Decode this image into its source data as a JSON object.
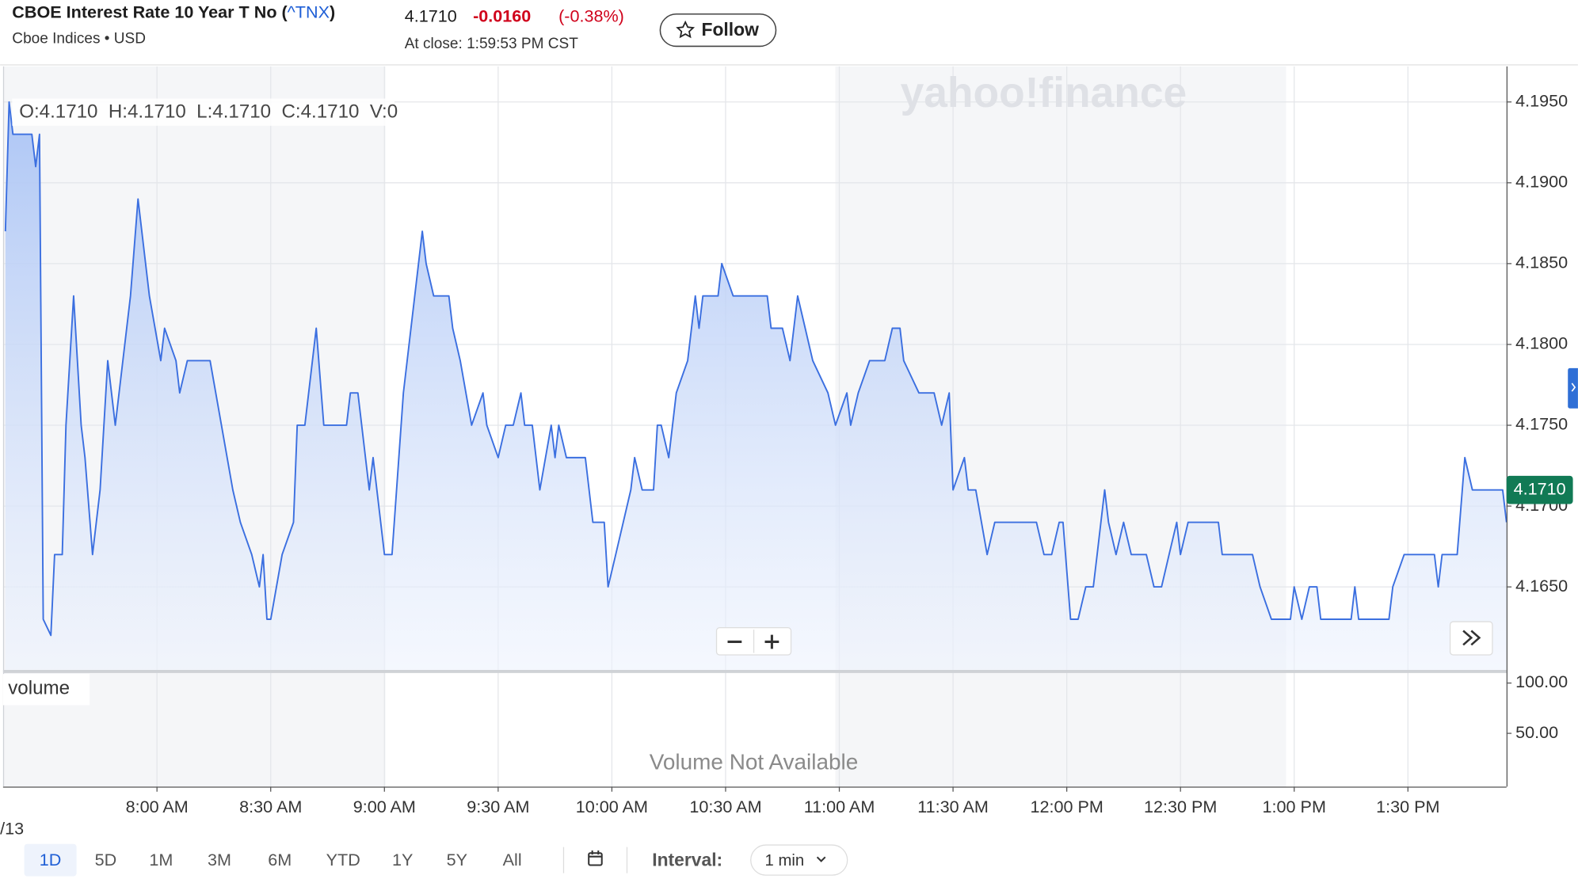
{
  "header": {
    "name": "CBOE Interest Rate 10 Year T No (",
    "symbol": "^TNX",
    "name_close": ")",
    "exchange": "Cboe Indices • USD",
    "price": "4.1710",
    "change": "-0.0160",
    "change_percent": "(-0.38%)",
    "close_time": "At close: 1:59:53 PM CST",
    "follow": "Follow"
  },
  "chart_data": {
    "type": "line",
    "ohlc_label": "O:4.1710  H:4.1710  L:4.1710  C:4.1710  V:0",
    "watermark": "yahoo!finance",
    "color": "#3b6fe0",
    "x": [
      440,
      441,
      442,
      444,
      447,
      448,
      449,
      450,
      452,
      453,
      455,
      456,
      458,
      460,
      461,
      463,
      465,
      467,
      469,
      473,
      475,
      478,
      481,
      482,
      485,
      486,
      488,
      494,
      497,
      500,
      502,
      505,
      507,
      508,
      509,
      510,
      513,
      516,
      517,
      519,
      522,
      524,
      530,
      531,
      533,
      536,
      537,
      540,
      542,
      545,
      550,
      551,
      553,
      557,
      558,
      560,
      563,
      566,
      567,
      570,
      572,
      574,
      576,
      577,
      579,
      581,
      584,
      585,
      586,
      588,
      593,
      595,
      598,
      599,
      601,
      605,
      606,
      608,
      611,
      612,
      613,
      615,
      617,
      620,
      622,
      623,
      624,
      628,
      629,
      632,
      641,
      642,
      645,
      647,
      649,
      651,
      653,
      657,
      659,
      662,
      663,
      665,
      668,
      672,
      674,
      676,
      677,
      681,
      685,
      687,
      689,
      690,
      693,
      694,
      696,
      699,
      701,
      712,
      714,
      716,
      718,
      719,
      721,
      723,
      725,
      727,
      728,
      730,
      731,
      733,
      735,
      737,
      741,
      743,
      745,
      747,
      749,
      750,
      752,
      760,
      761,
      769,
      771,
      774,
      779,
      780,
      782,
      784,
      786,
      787,
      795,
      796,
      797,
      805,
      806,
      809,
      817,
      818,
      819,
      823,
      825,
      827,
      835,
      836
    ],
    "values": [
      4.187,
      4.195,
      4.193,
      4.193,
      4.193,
      4.191,
      4.193,
      4.163,
      4.162,
      4.167,
      4.167,
      4.175,
      4.183,
      4.175,
      4.173,
      4.167,
      4.171,
      4.179,
      4.175,
      4.183,
      4.189,
      4.183,
      4.179,
      4.181,
      4.179,
      4.177,
      4.179,
      4.179,
      4.175,
      4.171,
      4.169,
      4.167,
      4.165,
      4.167,
      4.163,
      4.163,
      4.167,
      4.169,
      4.175,
      4.175,
      4.181,
      4.175,
      4.175,
      4.177,
      4.177,
      4.171,
      4.173,
      4.167,
      4.167,
      4.177,
      4.187,
      4.185,
      4.183,
      4.183,
      4.181,
      4.179,
      4.175,
      4.177,
      4.175,
      4.173,
      4.175,
      4.175,
      4.177,
      4.175,
      4.175,
      4.171,
      4.175,
      4.173,
      4.175,
      4.173,
      4.173,
      4.169,
      4.169,
      4.165,
      4.167,
      4.171,
      4.173,
      4.171,
      4.171,
      4.175,
      4.175,
      4.173,
      4.177,
      4.179,
      4.183,
      4.181,
      4.183,
      4.183,
      4.185,
      4.183,
      4.183,
      4.181,
      4.181,
      4.179,
      4.183,
      4.181,
      4.179,
      4.177,
      4.175,
      4.177,
      4.175,
      4.177,
      4.179,
      4.179,
      4.181,
      4.181,
      4.179,
      4.177,
      4.177,
      4.175,
      4.177,
      4.171,
      4.173,
      4.171,
      4.171,
      4.167,
      4.169,
      4.169,
      4.167,
      4.167,
      4.169,
      4.169,
      4.163,
      4.163,
      4.165,
      4.165,
      4.167,
      4.171,
      4.169,
      4.167,
      4.169,
      4.167,
      4.167,
      4.165,
      4.165,
      4.167,
      4.169,
      4.167,
      4.169,
      4.169,
      4.167,
      4.167,
      4.165,
      4.163,
      4.163,
      4.165,
      4.163,
      4.165,
      4.165,
      4.163,
      4.163,
      4.165,
      4.163,
      4.163,
      4.165,
      4.167,
      4.167,
      4.165,
      4.167,
      4.167,
      4.173,
      4.171,
      4.171,
      4.169
    ],
    "xlim": [
      439.4,
      836
    ],
    "ylim": [
      4.1598,
      4.1972
    ],
    "xticks": [
      {
        "value": 480,
        "label": "8:00 AM"
      },
      {
        "value": 510,
        "label": "8:30 AM"
      },
      {
        "value": 540,
        "label": "9:00 AM"
      },
      {
        "value": 570,
        "label": "9:30 AM"
      },
      {
        "value": 600,
        "label": "10:00 AM"
      },
      {
        "value": 630,
        "label": "10:30 AM"
      },
      {
        "value": 660,
        "label": "11:00 AM"
      },
      {
        "value": 690,
        "label": "11:30 AM"
      },
      {
        "value": 720,
        "label": "12:00 PM"
      },
      {
        "value": 750,
        "label": "12:30 PM"
      },
      {
        "value": 780,
        "label": "1:00 PM"
      },
      {
        "value": 810,
        "label": "1:30 PM"
      }
    ],
    "yticks": [
      {
        "value": 4.165,
        "label": "4.1650"
      },
      {
        "value": 4.17,
        "label": "4.1700"
      },
      {
        "value": 4.175,
        "label": "4.1750"
      },
      {
        "value": 4.18,
        "label": "4.1800"
      },
      {
        "value": 4.185,
        "label": "4.1850"
      },
      {
        "value": 4.19,
        "label": "4.1900"
      },
      {
        "value": 4.195,
        "label": "4.1950"
      }
    ],
    "last_value": {
      "value": 4.171,
      "label": "4.1710"
    },
    "grid": true
  },
  "x_axis_date": "/13",
  "volume_panel": {
    "label": "volume",
    "message": "Volume Not Available",
    "ylim": [
      -3,
      111
    ],
    "yticks": [
      {
        "value": 100,
        "label": "100.00"
      },
      {
        "value": 50,
        "label": "50.00"
      }
    ]
  },
  "toolbar": {
    "ranges": [
      "1D",
      "5D",
      "1M",
      "3M",
      "6M",
      "YTD",
      "1Y",
      "5Y",
      "All"
    ],
    "interval_label": "Interval:",
    "interval_value": "1 min"
  }
}
